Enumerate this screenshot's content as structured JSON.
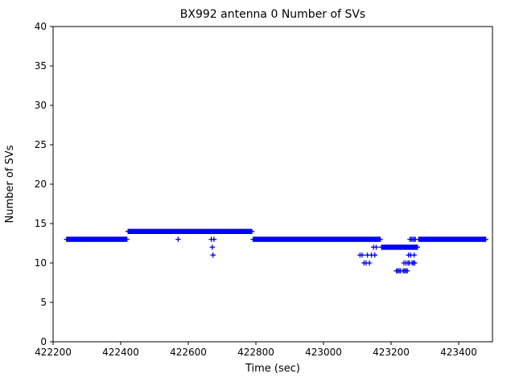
{
  "figure": {
    "title": "BX992 antenna 0 Number of SVs",
    "xlabel": "Time (sec)",
    "ylabel": "Number of SVs"
  },
  "chart_data": {
    "type": "scatter",
    "marker": "+",
    "color": "#0000ff",
    "axis_color": "#000000",
    "title": "BX992 antenna 0 Number of SVs",
    "xlabel": "Time (sec)",
    "ylabel": "Number of SVs",
    "xlim": [
      422200,
      423500
    ],
    "ylim": [
      0,
      40
    ],
    "grid": false,
    "legend": "none",
    "xticks": [
      422200,
      422400,
      422600,
      422800,
      423000,
      423200,
      423400
    ],
    "xtick_labels": [
      "422200",
      "422400",
      "422600",
      "422800",
      "423000",
      "423200",
      "423400"
    ],
    "yticks": [
      0,
      5,
      10,
      15,
      20,
      25,
      30,
      35,
      40
    ],
    "ytick_labels": [
      "0",
      "5",
      "10",
      "15",
      "20",
      "25",
      "30",
      "35",
      "40"
    ],
    "series_segments": [
      {
        "y": 13,
        "x0": 422240,
        "x1": 422418,
        "step": 2
      },
      {
        "y": 14,
        "x0": 422422,
        "x1": 422788,
        "step": 2
      },
      {
        "y": 13,
        "x0": 422792,
        "x1": 423168,
        "step": 2
      },
      {
        "y": 12,
        "x0": 423172,
        "x1": 423278,
        "step": 2
      },
      {
        "y": 13,
        "x0": 423282,
        "x1": 423480,
        "step": 2
      }
    ],
    "outlier_points": [
      [
        422570,
        13
      ],
      [
        422668,
        13
      ],
      [
        422676,
        13
      ],
      [
        422671,
        12
      ],
      [
        422673,
        11
      ],
      [
        423108,
        11
      ],
      [
        423114,
        11
      ],
      [
        423120,
        10
      ],
      [
        423126,
        10
      ],
      [
        423130,
        11
      ],
      [
        423136,
        10
      ],
      [
        423142,
        11
      ],
      [
        423148,
        12
      ],
      [
        423152,
        11
      ],
      [
        423156,
        12
      ],
      [
        423216,
        9
      ],
      [
        423220,
        9
      ],
      [
        423224,
        9
      ],
      [
        423228,
        9
      ],
      [
        423236,
        9
      ],
      [
        423240,
        9
      ],
      [
        423244,
        9
      ],
      [
        423248,
        9
      ],
      [
        423238,
        10
      ],
      [
        423244,
        10
      ],
      [
        423250,
        10
      ],
      [
        423254,
        10
      ],
      [
        423252,
        11
      ],
      [
        423258,
        11
      ],
      [
        423262,
        10
      ],
      [
        423266,
        10
      ],
      [
        423268,
        11
      ],
      [
        423270,
        10
      ],
      [
        423256,
        13
      ],
      [
        423260,
        13
      ],
      [
        423264,
        13
      ],
      [
        423268,
        13
      ],
      [
        423272,
        13
      ]
    ]
  }
}
